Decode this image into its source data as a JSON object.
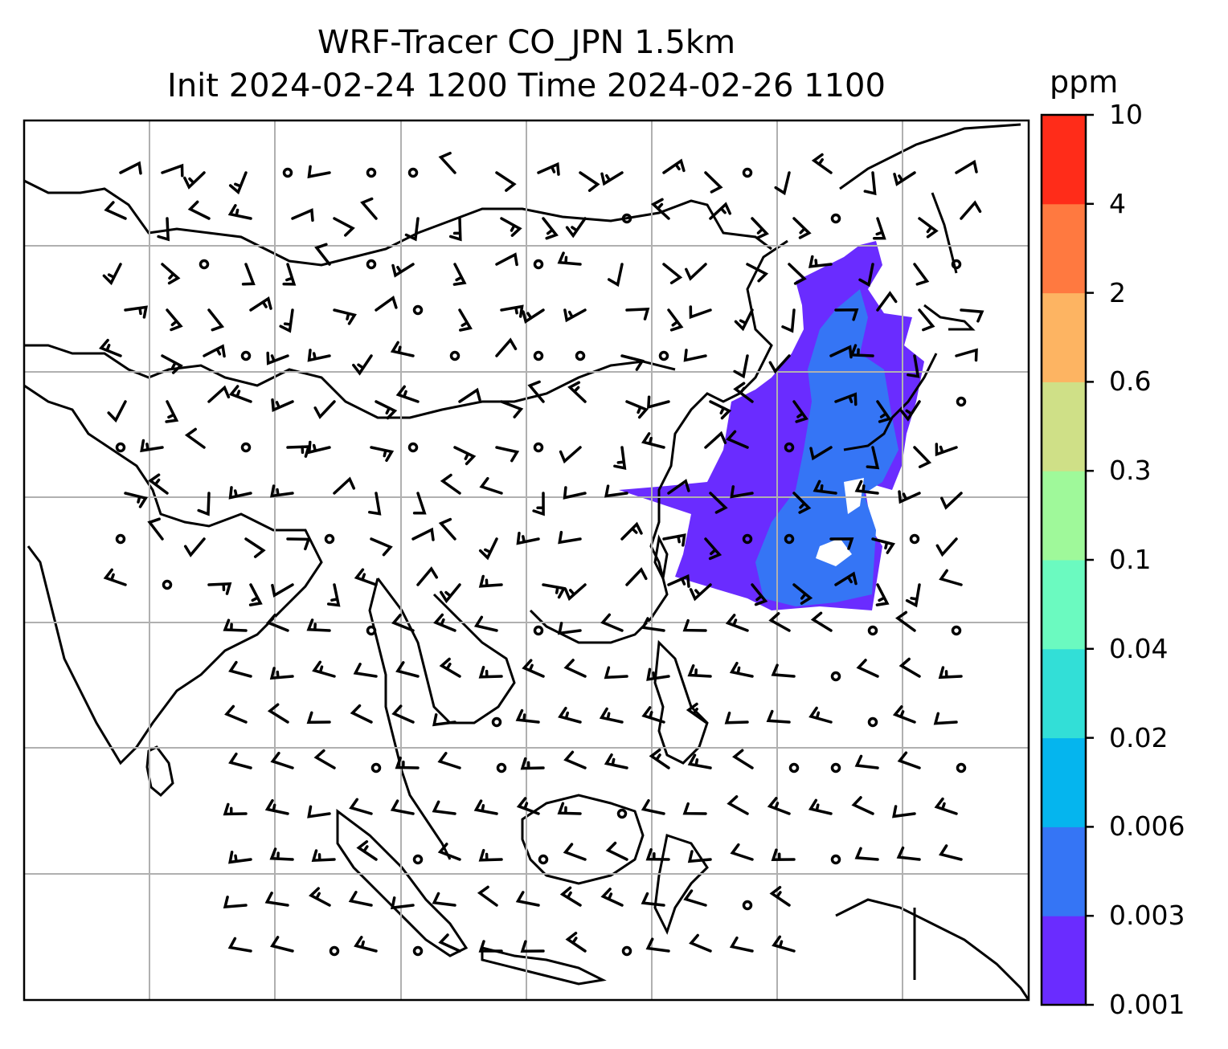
{
  "title": {
    "line1": "WRF-Tracer CO_JPN 1.5km",
    "line2": "Init 2024-02-24 1200 Time 2024-02-26 1100"
  },
  "colorbar": {
    "unit": "ppm",
    "ticks": [
      "0.001",
      "0.003",
      "0.006",
      "0.02",
      "0.04",
      "0.1",
      "0.3",
      "0.6",
      "2",
      "4",
      "10"
    ],
    "colors": [
      "#6a2cff",
      "#3575f5",
      "#05b5ee",
      "#32dfd7",
      "#6bfac0",
      "#9ff99a",
      "#cfe087",
      "#fdb462",
      "#ff7940",
      "#ff2c19"
    ]
  },
  "map": {
    "gridlines": true,
    "coastline_color": "#000000",
    "grid_color": "#b0b0b0",
    "tracer_field_color": "#6a2cff",
    "tracer_core_color": "#3575f5"
  }
}
